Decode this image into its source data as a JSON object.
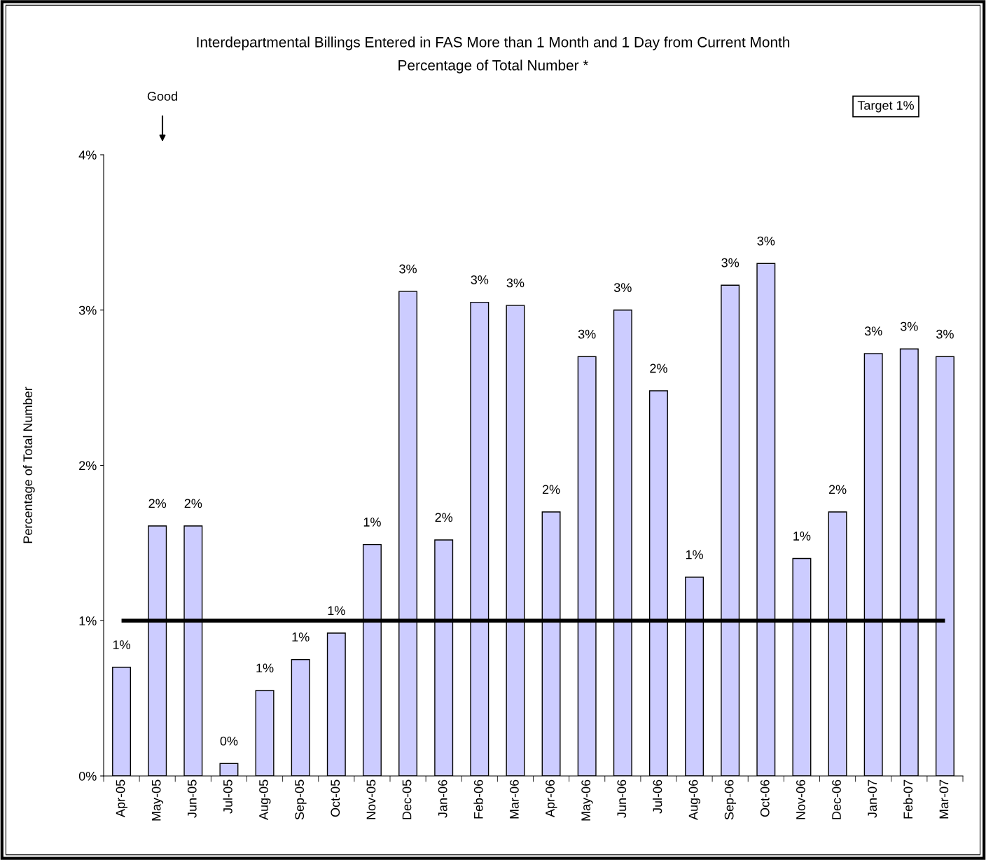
{
  "chart_data": {
    "type": "bar",
    "title": "Interdepartmental Billings Entered in FAS More than 1 Month and 1 Day from Current Month",
    "subtitle": "Percentage of Total Number *",
    "ylabel": "Percentage of Total Number",
    "categories": [
      "Apr-05",
      "May-05",
      "Jun-05",
      "Jul-05",
      "Aug-05",
      "Sep-05",
      "Oct-05",
      "Nov-05",
      "Dec-05",
      "Jan-06",
      "Feb-06",
      "Mar-06",
      "Apr-06",
      "May-06",
      "Jun-06",
      "Jul-06",
      "Aug-06",
      "Sep-06",
      "Oct-06",
      "Nov-06",
      "Dec-06",
      "Jan-07",
      "Feb-07",
      "Mar-07"
    ],
    "values": [
      0.7,
      1.61,
      1.61,
      0.08,
      0.55,
      0.75,
      0.92,
      1.49,
      3.12,
      1.52,
      3.05,
      3.03,
      1.7,
      2.7,
      3.0,
      2.48,
      1.28,
      3.16,
      3.3,
      1.4,
      1.7,
      2.72,
      2.75,
      2.7
    ],
    "value_labels": [
      "1%",
      "2%",
      "2%",
      "0%",
      "1%",
      "1%",
      "1%",
      "1%",
      "3%",
      "2%",
      "3%",
      "3%",
      "2%",
      "3%",
      "3%",
      "2%",
      "1%",
      "3%",
      "3%",
      "1%",
      "2%",
      "3%",
      "3%",
      "3%"
    ],
    "color": "#ccccff",
    "ylim": [
      0,
      4
    ],
    "yticks": [
      {
        "value": 0,
        "label": "0%"
      },
      {
        "value": 1,
        "label": "1%"
      },
      {
        "value": 2,
        "label": "2%"
      },
      {
        "value": 3,
        "label": "3%"
      },
      {
        "value": 4,
        "label": "4%"
      }
    ],
    "grid": false,
    "ref_lines": [
      {
        "axis": "y",
        "value": 1,
        "label": "Target 1%",
        "color": "#000000",
        "line_style": "solid"
      }
    ],
    "annotations": [
      "Good"
    ]
  }
}
